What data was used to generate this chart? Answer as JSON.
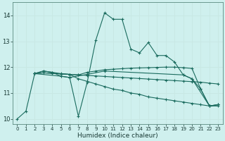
{
  "xlabel": "Humidex (Indice chaleur)",
  "bg_color": "#cff0ee",
  "grid_color": "#c8e8e4",
  "line_color": "#1a6b5e",
  "xlim": [
    -0.5,
    23.5
  ],
  "ylim": [
    9.8,
    14.5
  ],
  "xticks": [
    0,
    1,
    2,
    3,
    4,
    5,
    6,
    7,
    8,
    9,
    10,
    11,
    12,
    13,
    14,
    15,
    16,
    17,
    18,
    19,
    20,
    21,
    22,
    23
  ],
  "yticks": [
    10,
    11,
    12,
    13,
    14
  ],
  "lines": [
    {
      "x": [
        0,
        1,
        2,
        3,
        4,
        5,
        6,
        7,
        8,
        9,
        10,
        11,
        12,
        13,
        14,
        15,
        16,
        17,
        18,
        19,
        20,
        21,
        22,
        23
      ],
      "y": [
        10.0,
        10.3,
        11.75,
        11.85,
        11.8,
        11.65,
        11.6,
        10.1,
        11.4,
        13.05,
        14.1,
        13.85,
        13.85,
        12.7,
        12.55,
        12.95,
        12.45,
        12.45,
        12.2,
        11.7,
        11.55,
        11.15,
        10.5,
        10.55
      ]
    },
    {
      "x": [
        2,
        3,
        4,
        5,
        6,
        7,
        8,
        9,
        10,
        11,
        12,
        13,
        14,
        15,
        16,
        17,
        18,
        19,
        20,
        21,
        22,
        23
      ],
      "y": [
        11.75,
        11.78,
        11.76,
        11.74,
        11.72,
        11.7,
        11.68,
        11.66,
        11.64,
        11.62,
        11.6,
        11.58,
        11.56,
        11.54,
        11.52,
        11.5,
        11.48,
        11.46,
        11.44,
        11.42,
        11.38,
        11.35
      ]
    },
    {
      "x": [
        2,
        3,
        4,
        5,
        6,
        7,
        8,
        9,
        10,
        11,
        12,
        13,
        14,
        15,
        16,
        17,
        18,
        19,
        20,
        21,
        22,
        23
      ],
      "y": [
        11.75,
        11.78,
        11.76,
        11.74,
        11.72,
        11.55,
        11.45,
        11.35,
        11.25,
        11.15,
        11.1,
        11.0,
        10.95,
        10.85,
        10.8,
        10.75,
        10.7,
        10.65,
        10.6,
        10.55,
        10.5,
        10.5
      ]
    },
    {
      "x": [
        2,
        3,
        4,
        5,
        6,
        7,
        8,
        9,
        10,
        11,
        12,
        13,
        14,
        15,
        16,
        17,
        18,
        19,
        20,
        21,
        22,
        23
      ],
      "y": [
        11.75,
        11.85,
        11.8,
        11.75,
        11.72,
        11.7,
        11.8,
        11.85,
        11.9,
        11.92,
        11.94,
        11.96,
        11.97,
        11.98,
        11.99,
        12.0,
        12.0,
        11.98,
        11.95,
        11.15,
        10.5,
        10.55
      ]
    },
    {
      "x": [
        2,
        5,
        6,
        8,
        10,
        19,
        20,
        22,
        23
      ],
      "y": [
        11.75,
        11.65,
        11.6,
        11.72,
        11.85,
        11.7,
        11.55,
        10.5,
        10.55
      ]
    }
  ]
}
